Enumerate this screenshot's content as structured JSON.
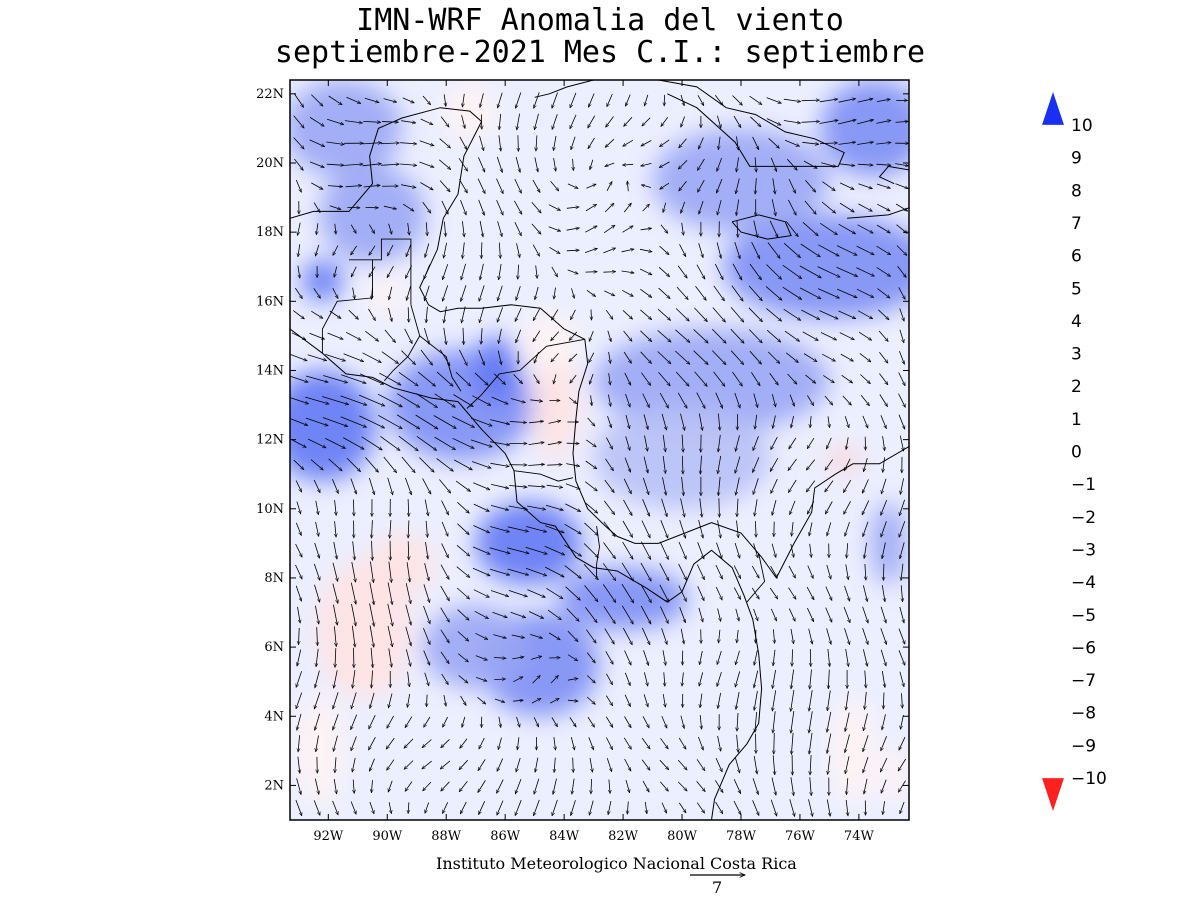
{
  "title": {
    "line1": "IMN-WRF Anomalia del viento",
    "line2": "septiembre-2021 Mes C.I.: septiembre"
  },
  "map": {
    "lon_range": [
      -93.3,
      -72.3
    ],
    "lat_range": [
      1,
      22.4
    ],
    "lon_ticks": [
      {
        "value": -92,
        "label": "92W"
      },
      {
        "value": -90,
        "label": "90W"
      },
      {
        "value": -88,
        "label": "88W"
      },
      {
        "value": -86,
        "label": "86W"
      },
      {
        "value": -84,
        "label": "84W"
      },
      {
        "value": -82,
        "label": "82W"
      },
      {
        "value": -80,
        "label": "80W"
      },
      {
        "value": -78,
        "label": "78W"
      },
      {
        "value": -76,
        "label": "76W"
      },
      {
        "value": -74,
        "label": "74W"
      }
    ],
    "lat_ticks": [
      {
        "value": 2,
        "label": "2N"
      },
      {
        "value": 4,
        "label": "4N"
      },
      {
        "value": 6,
        "label": "6N"
      },
      {
        "value": 8,
        "label": "8N"
      },
      {
        "value": 10,
        "label": "10N"
      },
      {
        "value": 12,
        "label": "12N"
      },
      {
        "value": 14,
        "label": "14N"
      },
      {
        "value": 16,
        "label": "16N"
      },
      {
        "value": 18,
        "label": "18N"
      },
      {
        "value": 20,
        "label": "20N"
      },
      {
        "value": 22,
        "label": "22N"
      }
    ],
    "blobs": [
      {
        "lon": -92.2,
        "lat": 12.4,
        "rx": 1.8,
        "ry": 1.6,
        "v": 5
      },
      {
        "lon": -87.5,
        "lat": 13.0,
        "rx": 2.5,
        "ry": 1.6,
        "v": 4
      },
      {
        "lon": -85.2,
        "lat": 9.0,
        "rx": 1.8,
        "ry": 1.2,
        "v": 5
      },
      {
        "lon": -82.0,
        "lat": 7.4,
        "rx": 2.2,
        "ry": 0.9,
        "v": 4
      },
      {
        "lon": -84.8,
        "lat": 5.5,
        "rx": 2.0,
        "ry": 1.5,
        "v": 4
      },
      {
        "lon": -87.0,
        "lat": 6.0,
        "rx": 1.8,
        "ry": 1.2,
        "v": 3
      },
      {
        "lon": -75.0,
        "lat": 17.0,
        "rx": 3.6,
        "ry": 1.5,
        "v": 4
      },
      {
        "lon": -78.0,
        "lat": 19.5,
        "rx": 3.0,
        "ry": 1.5,
        "v": 3
      },
      {
        "lon": -73.5,
        "lat": 21.0,
        "rx": 1.8,
        "ry": 1.4,
        "v": 4
      },
      {
        "lon": -79.0,
        "lat": 13.7,
        "rx": 4.0,
        "ry": 1.5,
        "v": 3
      },
      {
        "lon": -86.3,
        "lat": 14.0,
        "rx": 0.8,
        "ry": 1.0,
        "v": 5
      },
      {
        "lon": -92.2,
        "lat": 16.6,
        "rx": 0.7,
        "ry": 0.6,
        "v": 5
      },
      {
        "lon": -90.5,
        "lat": 18.5,
        "rx": 1.8,
        "ry": 1.4,
        "v": 3
      },
      {
        "lon": -91.5,
        "lat": 21.0,
        "rx": 2.0,
        "ry": 1.4,
        "v": 3
      },
      {
        "lon": -80.0,
        "lat": 11.5,
        "rx": 3.0,
        "ry": 1.5,
        "v": 2
      },
      {
        "lon": -73.0,
        "lat": 9.0,
        "rx": 0.6,
        "ry": 1.2,
        "v": 3
      },
      {
        "lon": -90.8,
        "lat": 6.5,
        "rx": 1.6,
        "ry": 2.0,
        "v": -2
      },
      {
        "lon": -89.5,
        "lat": 8.4,
        "rx": 1.1,
        "ry": 0.9,
        "v": -2
      },
      {
        "lon": -92.3,
        "lat": 3.0,
        "rx": 0.8,
        "ry": 1.6,
        "v": -1
      },
      {
        "lon": -84.3,
        "lat": 13.0,
        "rx": 0.8,
        "ry": 1.6,
        "v": -2
      },
      {
        "lon": -84.5,
        "lat": 14.8,
        "rx": 1.0,
        "ry": 0.8,
        "v": -1
      },
      {
        "lon": -87.2,
        "lat": 21.5,
        "rx": 0.9,
        "ry": 0.8,
        "v": -1
      },
      {
        "lon": -74.5,
        "lat": 11.4,
        "rx": 0.6,
        "ry": 0.3,
        "v": -3
      },
      {
        "lon": -74.2,
        "lat": 3.0,
        "rx": 0.8,
        "ry": 1.5,
        "v": -1
      },
      {
        "lon": -72.8,
        "lat": 2.3,
        "rx": 0.5,
        "ry": 0.8,
        "v": -1
      },
      {
        "lon": -90.0,
        "lat": 16.2,
        "rx": 0.6,
        "ry": 0.6,
        "v": -1
      }
    ],
    "wind_regions": [
      {
        "lon": -91.5,
        "lat": 12.8,
        "u": 1.6,
        "v": -0.2,
        "w": 1.0
      },
      {
        "lon": -87.5,
        "lat": 12.3,
        "u": 1.2,
        "v": -0.2,
        "w": 0.8
      },
      {
        "lon": -85.5,
        "lat": 8.6,
        "u": 1.4,
        "v": -0.1,
        "w": 1.0
      },
      {
        "lon": -82.0,
        "lat": 7.0,
        "u": 1.0,
        "v": -0.5,
        "w": 0.8
      },
      {
        "lon": -80.0,
        "lat": 14.0,
        "u": 1.0,
        "v": 0.0,
        "w": 0.8
      },
      {
        "lon": -75.0,
        "lat": 17.0,
        "u": 1.5,
        "v": -0.3,
        "w": 1.0
      },
      {
        "lon": -75.0,
        "lat": 21.5,
        "u": 0.8,
        "v": 1.0,
        "w": 0.8
      },
      {
        "lon": -91.0,
        "lat": 20.0,
        "u": 1.0,
        "v": 0.4,
        "w": 0.8
      },
      {
        "lon": -84.0,
        "lat": 5.0,
        "u": -0.3,
        "v": 1.0,
        "w": 0.8
      },
      {
        "lon": -90.0,
        "lat": 7.0,
        "u": 0.0,
        "v": -0.8,
        "w": 0.8
      },
      {
        "lon": -77.0,
        "lat": 4.0,
        "u": 0.1,
        "v": -0.9,
        "w": 0.8
      },
      {
        "lon": -78.0,
        "lat": 10.0,
        "u": -0.2,
        "v": -0.8,
        "w": 0.6
      },
      {
        "lon": -83.0,
        "lat": 18.5,
        "u": 0.2,
        "v": 0.8,
        "w": 0.6
      },
      {
        "lon": -85.0,
        "lat": 12.0,
        "u": 0.0,
        "v": 0.7,
        "w": 0.5
      }
    ],
    "coastlines": [
      [
        [
          -93.3,
          15.2
        ],
        [
          -92.2,
          14.5
        ],
        [
          -91.4,
          13.9
        ],
        [
          -90.5,
          13.8
        ],
        [
          -89.8,
          13.5
        ],
        [
          -88.5,
          13.2
        ],
        [
          -87.6,
          13.1
        ],
        [
          -87.4,
          12.9
        ],
        [
          -86.8,
          12.3
        ],
        [
          -86.0,
          11.6
        ],
        [
          -85.7,
          11.1
        ],
        [
          -85.6,
          10.2
        ],
        [
          -85.2,
          9.9
        ],
        [
          -84.8,
          9.6
        ],
        [
          -84.3,
          9.5
        ],
        [
          -83.6,
          8.6
        ],
        [
          -83.0,
          8.3
        ],
        [
          -82.2,
          8.2
        ],
        [
          -81.2,
          7.7
        ],
        [
          -80.5,
          7.3
        ],
        [
          -80.0,
          7.6
        ],
        [
          -79.6,
          8.4
        ],
        [
          -79.0,
          8.8
        ],
        [
          -78.3,
          8.3
        ],
        [
          -77.9,
          7.5
        ],
        [
          -77.6,
          6.8
        ],
        [
          -77.4,
          5.8
        ],
        [
          -77.3,
          4.8
        ],
        [
          -77.4,
          3.8
        ],
        [
          -77.8,
          3.2
        ],
        [
          -78.4,
          2.6
        ],
        [
          -78.9,
          1.6
        ],
        [
          -79.0,
          1.0
        ]
      ],
      [
        [
          -79.0,
          9.6
        ],
        [
          -79.9,
          9.3
        ],
        [
          -80.8,
          9.0
        ],
        [
          -81.6,
          9.0
        ],
        [
          -82.2,
          9.2
        ],
        [
          -82.6,
          9.5
        ],
        [
          -83.2,
          10.0
        ],
        [
          -83.6,
          10.8
        ],
        [
          -83.7,
          11.6
        ],
        [
          -83.6,
          12.6
        ],
        [
          -83.5,
          13.4
        ],
        [
          -83.2,
          14.2
        ],
        [
          -83.3,
          14.9
        ],
        [
          -84.0,
          15.2
        ],
        [
          -84.8,
          15.8
        ],
        [
          -85.8,
          15.9
        ],
        [
          -86.8,
          15.8
        ],
        [
          -87.6,
          15.8
        ],
        [
          -88.2,
          15.7
        ],
        [
          -88.6,
          15.9
        ],
        [
          -88.9,
          16.4
        ],
        [
          -88.3,
          17.5
        ],
        [
          -88.1,
          18.4
        ],
        [
          -87.6,
          19.1
        ],
        [
          -87.4,
          20.2
        ],
        [
          -86.8,
          21.2
        ],
        [
          -87.2,
          21.5
        ],
        [
          -88.2,
          21.6
        ],
        [
          -89.5,
          21.3
        ],
        [
          -90.3,
          21.0
        ],
        [
          -90.6,
          20.2
        ],
        [
          -90.5,
          19.4
        ],
        [
          -91.3,
          18.6
        ],
        [
          -92.5,
          18.6
        ],
        [
          -93.3,
          18.4
        ]
      ],
      [
        [
          -79.0,
          9.6
        ],
        [
          -78.0,
          9.3
        ],
        [
          -77.3,
          8.6
        ],
        [
          -76.8,
          8.0
        ],
        [
          -76.2,
          9.0
        ],
        [
          -75.6,
          9.9
        ],
        [
          -75.5,
          10.6
        ],
        [
          -74.8,
          11.0
        ],
        [
          -74.2,
          11.3
        ],
        [
          -73.3,
          11.3
        ],
        [
          -72.3,
          11.8
        ]
      ],
      [
        [
          -85.0,
          21.9
        ],
        [
          -84.5,
          22.0
        ],
        [
          -83.9,
          22.2
        ],
        [
          -83.0,
          22.4
        ]
      ],
      [
        [
          -80.8,
          22.4
        ],
        [
          -79.5,
          22.2
        ],
        [
          -78.5,
          21.6
        ],
        [
          -77.5,
          21.4
        ],
        [
          -76.5,
          20.9
        ],
        [
          -75.5,
          20.7
        ],
        [
          -74.5,
          20.3
        ],
        [
          -74.7,
          19.9
        ],
        [
          -75.6,
          19.9
        ],
        [
          -76.8,
          19.9
        ],
        [
          -77.7,
          19.9
        ],
        [
          -78.2,
          20.6
        ],
        [
          -79.5,
          21.6
        ],
        [
          -80.5,
          22.0
        ]
      ],
      [
        [
          -78.3,
          18.3
        ],
        [
          -77.4,
          18.5
        ],
        [
          -76.5,
          18.3
        ],
        [
          -76.3,
          17.9
        ],
        [
          -77.1,
          17.8
        ],
        [
          -78.0,
          18.0
        ],
        [
          -78.3,
          18.3
        ]
      ],
      [
        [
          -74.4,
          18.4
        ],
        [
          -73.0,
          18.5
        ],
        [
          -72.3,
          18.7
        ]
      ],
      [
        [
          -72.3,
          19.8
        ],
        [
          -73.0,
          19.9
        ],
        [
          -73.3,
          19.6
        ],
        [
          -72.8,
          19.4
        ]
      ]
    ],
    "borders": [
      [
        [
          -91.3,
          17.2
        ],
        [
          -90.2,
          17.2
        ],
        [
          -90.2,
          17.8
        ],
        [
          -89.2,
          17.8
        ],
        [
          -89.2,
          15.9
        ]
      ],
      [
        [
          -92.2,
          14.5
        ],
        [
          -92.2,
          15.2
        ],
        [
          -91.7,
          16.0
        ],
        [
          -90.5,
          16.1
        ],
        [
          -90.5,
          17.2
        ]
      ],
      [
        [
          -89.2,
          15.9
        ],
        [
          -88.9,
          15.0
        ],
        [
          -89.3,
          14.4
        ],
        [
          -89.8,
          14.0
        ],
        [
          -90.1,
          13.7
        ]
      ],
      [
        [
          -88.9,
          15.0
        ],
        [
          -88.0,
          14.4
        ],
        [
          -87.8,
          13.8
        ],
        [
          -87.5,
          13.4
        ]
      ],
      [
        [
          -87.3,
          12.9
        ],
        [
          -86.8,
          13.3
        ],
        [
          -86.2,
          13.9
        ],
        [
          -85.5,
          14.0
        ],
        [
          -84.6,
          14.7
        ],
        [
          -83.3,
          14.9
        ]
      ],
      [
        [
          -85.7,
          11.1
        ],
        [
          -84.8,
          11.0
        ],
        [
          -84.2,
          10.8
        ],
        [
          -83.7,
          10.9
        ]
      ],
      [
        [
          -82.9,
          9.5
        ],
        [
          -82.8,
          8.9
        ],
        [
          -82.9,
          8.4
        ],
        [
          -82.9,
          8.0
        ]
      ],
      [
        [
          -77.4,
          8.7
        ],
        [
          -77.2,
          7.9
        ],
        [
          -77.8,
          7.3
        ]
      ]
    ]
  },
  "colorbar": {
    "values": [
      10,
      9,
      8,
      7,
      6,
      5,
      4,
      3,
      2,
      1,
      0,
      -1,
      -2,
      -3,
      -4,
      -5,
      -6,
      -7,
      -8,
      -9,
      -10
    ],
    "labels": [
      "10",
      "9",
      "8",
      "7",
      "6",
      "5",
      "4",
      "3",
      "2",
      "1",
      "0",
      "−1",
      "−2",
      "−3",
      "−4",
      "−5",
      "−6",
      "−7",
      "−8",
      "−9",
      "−10"
    ],
    "colors": [
      "#1a2ff2",
      "#2c44f4",
      "#3c56f4",
      "#4c66f4",
      "#6378f4",
      "#7d8ef4",
      "#9aa6f4",
      "#b7c0f6",
      "#d4daf8",
      "#f0f2ff",
      "#fff3f3",
      "#ffe2e2",
      "#ffcdcd",
      "#ffb3b3",
      "#ff9a9a",
      "#ff8282",
      "#ff6b6b",
      "#ff5252",
      "#ff3a3a",
      "#ff2020"
    ]
  },
  "credit": "Instituto Meteorologico Nacional Costa Rica",
  "reference_vector": {
    "value": 7,
    "label": "7"
  }
}
